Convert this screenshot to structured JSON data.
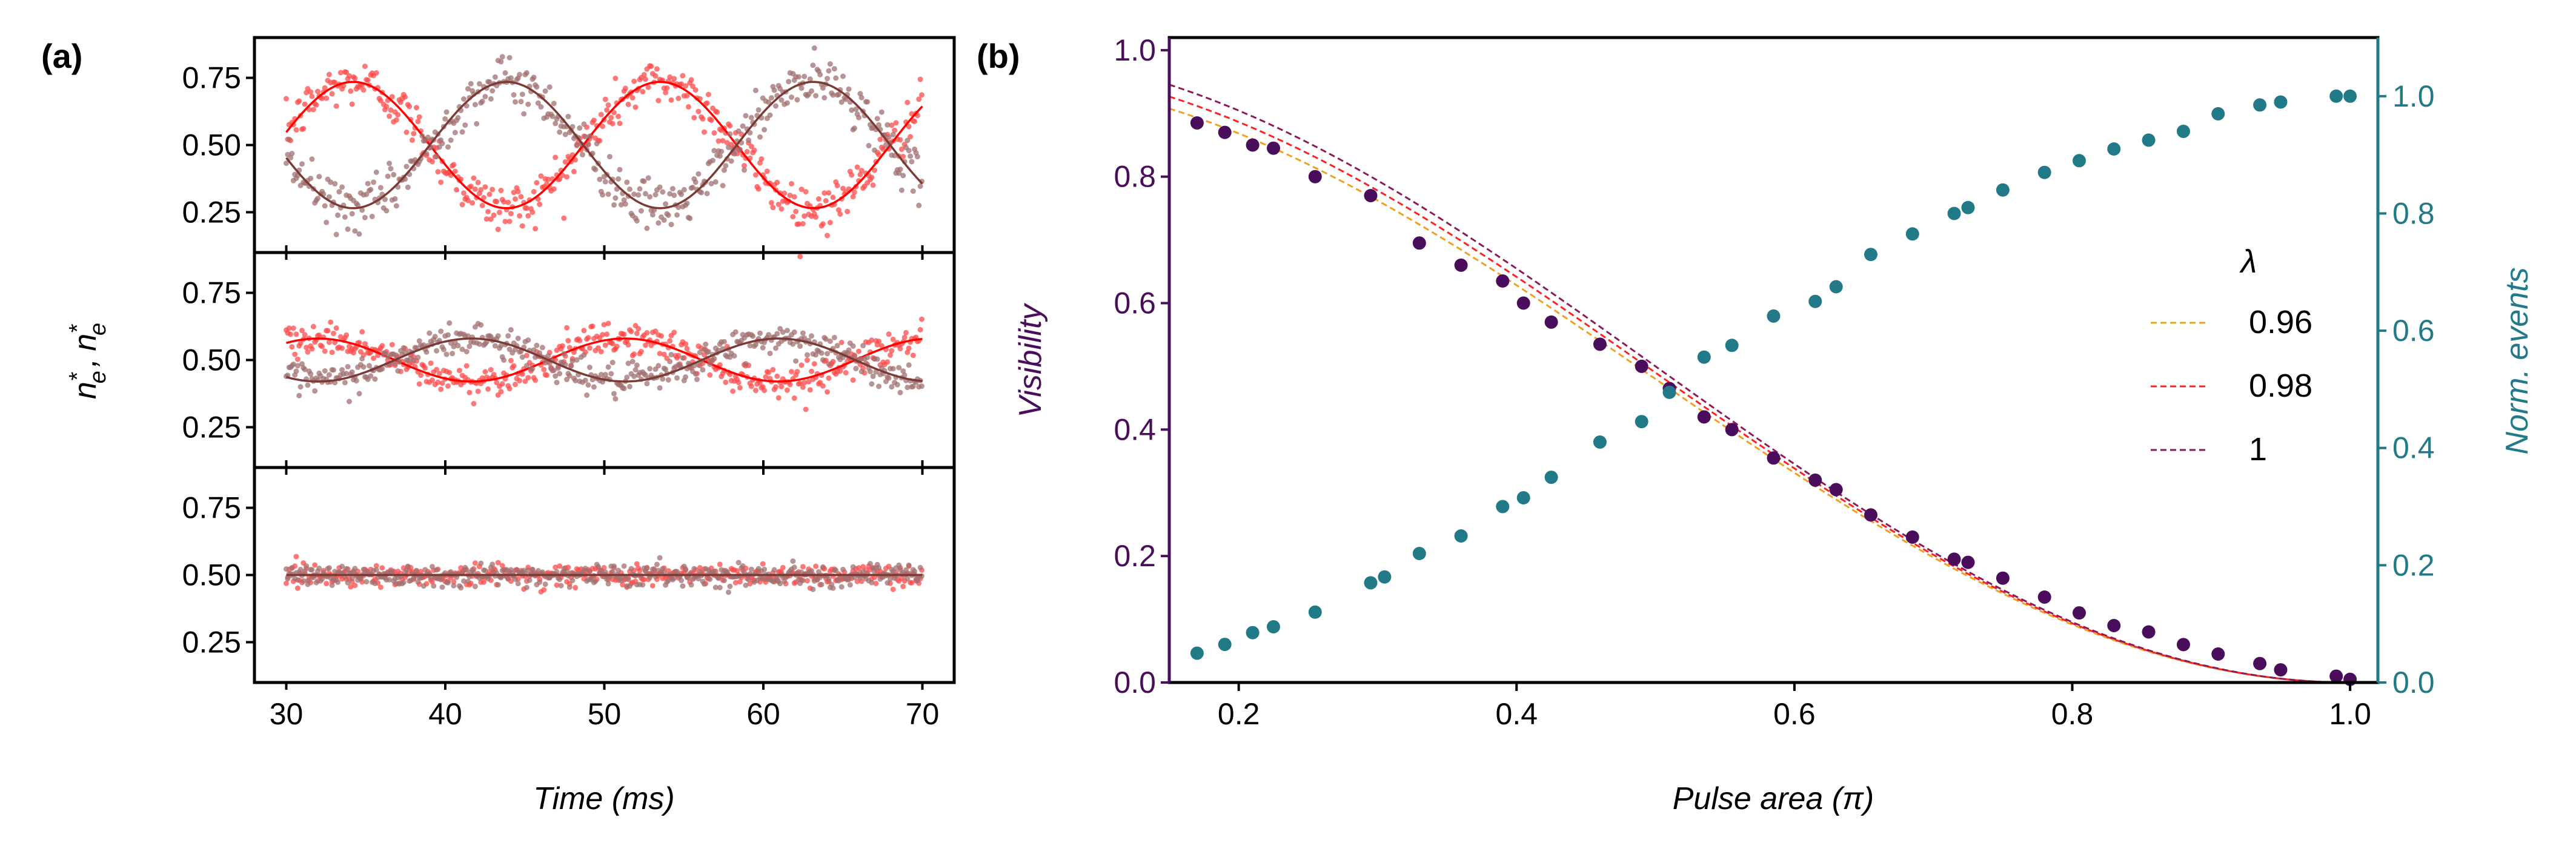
{
  "panel_labels": {
    "a": "(a)",
    "b": "(b)"
  },
  "colors": {
    "red": "#ff0000",
    "red_points": "#ff4b4b",
    "brown": "#7a3a36",
    "brown_points": "#a07070",
    "visibility": "#4a0d5c",
    "events": "#227a88",
    "lambda_096": "#f0a020",
    "lambda_098": "#ff2020",
    "lambda_1": "#8b1a5a"
  },
  "chart_data": [
    {
      "id": "a",
      "type": "scatter",
      "xlabel": "Time (ms)",
      "ylabel": "n*_e , n*_e",
      "ylabel_parts": {
        "n": "n",
        "star": "*",
        "sub": "e",
        "sep": ","
      },
      "xlim": [
        28,
        72
      ],
      "x_ticks": [
        30,
        40,
        50,
        60,
        70
      ],
      "x_tick_labels": [
        "30",
        "40",
        "50",
        "60",
        "70"
      ],
      "ylim": [
        0.1,
        0.9
      ],
      "y_ticks": [
        0.25,
        0.5,
        0.75
      ],
      "y_tick_labels": [
        "0.25",
        "0.50",
        "0.75"
      ],
      "subplots": [
        {
          "name": "top",
          "mean": 0.5,
          "amplitude": 0.235,
          "period_ms": 19.3,
          "phase_ms": 34.2,
          "noise": 0.045,
          "series": [
            {
              "name": "red",
              "sign": 1
            },
            {
              "name": "brown",
              "sign": -1
            }
          ]
        },
        {
          "name": "middle",
          "mean": 0.5,
          "amplitude": 0.08,
          "period_ms": 19.3,
          "phase_ms": 32.0,
          "noise": 0.03,
          "series": [
            {
              "name": "red",
              "sign": 1
            },
            {
              "name": "brown",
              "sign": -1
            }
          ]
        },
        {
          "name": "bottom",
          "mean": 0.5,
          "amplitude": 0.0,
          "period_ms": 19.3,
          "phase_ms": 32.0,
          "noise": 0.02,
          "series": [
            {
              "name": "red",
              "sign": 1
            },
            {
              "name": "brown",
              "sign": -1
            }
          ]
        }
      ]
    },
    {
      "id": "b",
      "type": "scatter",
      "xlabel": "Pulse area (π)",
      "ylabel": "Visibility",
      "ylabel_right": "Norm. events",
      "xlim": [
        0.15,
        1.02
      ],
      "x_ticks": [
        0.2,
        0.4,
        0.6,
        0.8,
        1.0
      ],
      "x_tick_labels": [
        "0.2",
        "0.4",
        "0.6",
        "0.8",
        "1.0"
      ],
      "ylim": [
        0.0,
        1.02
      ],
      "y_ticks": [
        0.0,
        0.2,
        0.4,
        0.6,
        0.8,
        1.0
      ],
      "y_tick_labels": [
        "0.0",
        "0.2",
        "0.4",
        "0.6",
        "0.8",
        "1.0"
      ],
      "ylim_right": [
        0.0,
        1.1
      ],
      "y_ticks_right": [
        0.0,
        0.2,
        0.4,
        0.6,
        0.8,
        1.0
      ],
      "y_tick_labels_right": [
        "0.0",
        "0.2",
        "0.4",
        "0.6",
        "0.8",
        "1.0"
      ],
      "visibility": {
        "x": [
          0.17,
          0.19,
          0.21,
          0.225,
          0.255,
          0.295,
          0.33,
          0.36,
          0.39,
          0.405,
          0.425,
          0.46,
          0.49,
          0.51,
          0.535,
          0.555,
          0.585,
          0.615,
          0.63,
          0.655,
          0.685,
          0.715,
          0.725,
          0.75,
          0.78,
          0.805,
          0.83,
          0.855,
          0.88,
          0.905,
          0.935,
          0.95,
          0.99,
          1.0
        ],
        "y": [
          0.885,
          0.87,
          0.85,
          0.845,
          0.8,
          0.77,
          0.695,
          0.66,
          0.635,
          0.6,
          0.57,
          0.535,
          0.5,
          0.465,
          0.42,
          0.4,
          0.355,
          0.32,
          0.305,
          0.265,
          0.23,
          0.195,
          0.19,
          0.165,
          0.135,
          0.11,
          0.09,
          0.08,
          0.06,
          0.045,
          0.03,
          0.02,
          0.01,
          0.005
        ]
      },
      "events": {
        "x": [
          0.17,
          0.19,
          0.21,
          0.225,
          0.255,
          0.295,
          0.305,
          0.33,
          0.36,
          0.39,
          0.405,
          0.425,
          0.46,
          0.49,
          0.51,
          0.535,
          0.555,
          0.585,
          0.615,
          0.63,
          0.655,
          0.685,
          0.715,
          0.725,
          0.75,
          0.78,
          0.805,
          0.83,
          0.855,
          0.88,
          0.905,
          0.935,
          0.95,
          0.99,
          1.0
        ],
        "y": [
          0.05,
          0.065,
          0.085,
          0.095,
          0.12,
          0.17,
          0.18,
          0.22,
          0.25,
          0.3,
          0.315,
          0.35,
          0.41,
          0.445,
          0.495,
          0.555,
          0.575,
          0.625,
          0.65,
          0.675,
          0.73,
          0.765,
          0.8,
          0.81,
          0.84,
          0.87,
          0.89,
          0.91,
          0.925,
          0.94,
          0.97,
          0.985,
          0.99,
          1.0,
          1.0
        ]
      },
      "legend": {
        "title": "λ",
        "entries": [
          {
            "label": "0.96",
            "lambda": 0.96,
            "color_key": "lambda_096"
          },
          {
            "label": "0.98",
            "lambda": 0.98,
            "color_key": "lambda_098"
          },
          {
            "label": "1",
            "lambda": 1.0,
            "color_key": "lambda_1"
          }
        ],
        "placement": "right-middle"
      }
    }
  ]
}
